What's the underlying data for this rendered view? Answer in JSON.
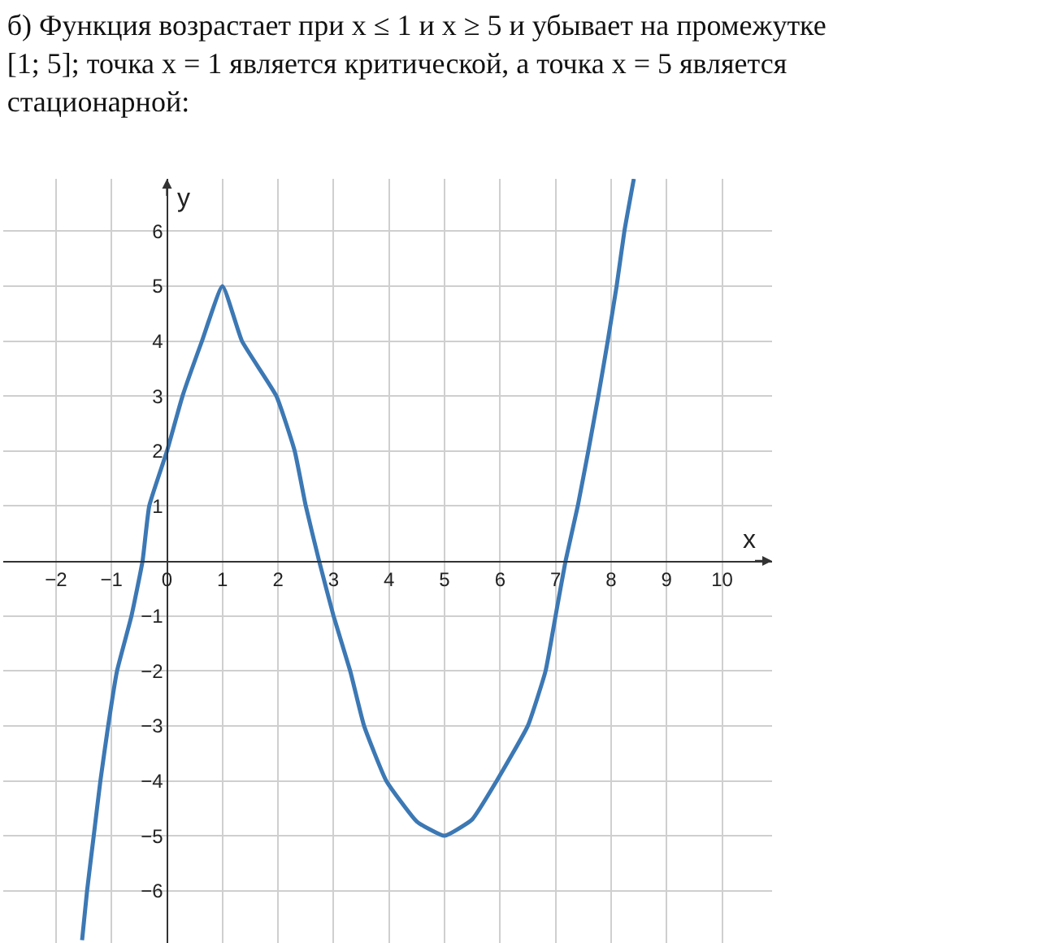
{
  "chart_data": {
    "type": "line",
    "title": "б) Функция возрастает при x ≤ 1 и x ≥ 5 и убывает на промежутке\n[1; 5]; точка x = 1 является критической, а точка x = 5 является\nстационарной:",
    "xlabel": "x",
    "ylabel": "y",
    "series": [
      {
        "color": "#3c78b4",
        "x": [
          -1.53,
          -1.44,
          -1.32,
          -1.2,
          -1.06,
          -0.9,
          -0.64,
          -0.44,
          -0.32,
          0,
          0.28,
          0.63,
          1,
          1.35,
          1.97,
          2.3,
          2.5,
          2.74,
          3.0,
          3.3,
          3.55,
          3.95,
          4.5,
          5,
          5.5,
          5.94,
          6.5,
          6.82,
          7.0,
          7.18,
          7.4,
          7.59,
          7.77,
          7.94,
          8.1,
          8.24,
          8.41
        ],
        "values": [
          -6.9,
          -6,
          -5,
          -4,
          -3,
          -2,
          -1,
          0,
          1,
          2,
          3,
          4,
          5,
          4,
          3,
          2,
          1,
          0,
          -1,
          -2,
          -3,
          -4,
          -4.74,
          -5,
          -4.7,
          -4,
          -3,
          -2,
          -1,
          0,
          1,
          2,
          3,
          4,
          5,
          6,
          6.95
        ]
      }
    ],
    "xlim": [
      -2.95,
      10.9
    ],
    "ylim": [
      -6.95,
      6.95
    ],
    "xticks": [
      -2,
      -1,
      0,
      1,
      2,
      3,
      4,
      5,
      6,
      7,
      8,
      9,
      10
    ],
    "yticks": [
      -6,
      -5,
      -4,
      -3,
      -2,
      -1,
      1,
      2,
      3,
      4,
      5,
      6
    ],
    "grid": true,
    "marker": "none",
    "line_style": "solid"
  }
}
